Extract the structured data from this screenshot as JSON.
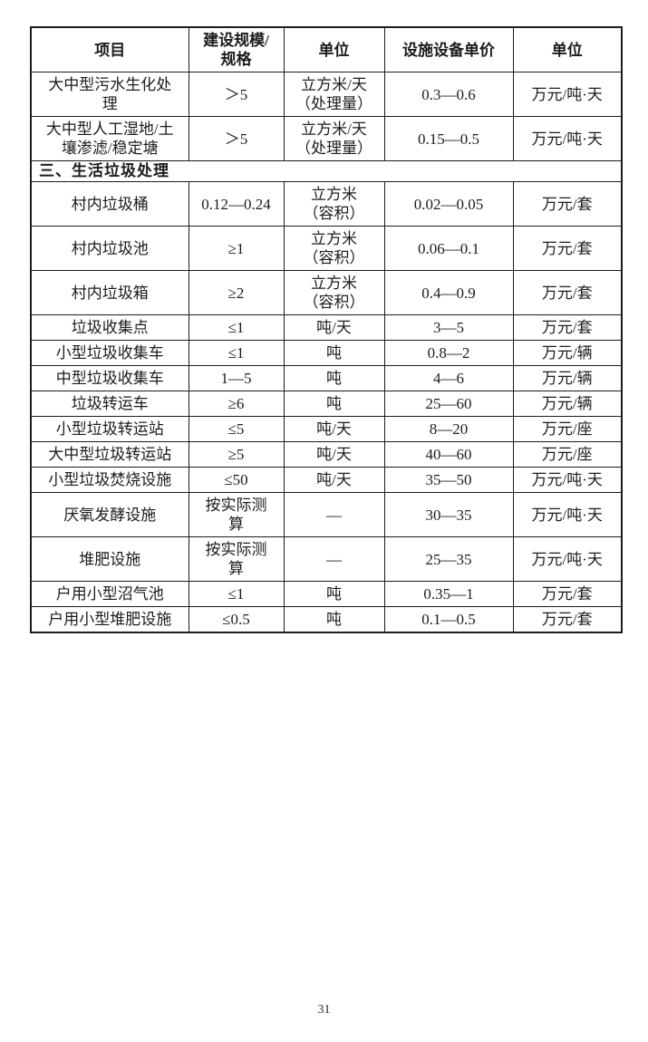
{
  "page": {
    "number": "31"
  },
  "table": {
    "headers": [
      "项目",
      "建设规模/\n规格",
      "单位",
      "设施设备单价",
      "单位"
    ],
    "rows": [
      {
        "type": "data",
        "cells": [
          "大中型污水生化处\n理",
          "＞5",
          "立方米/天\n（处理量）",
          "0.3—0.6",
          "万元/吨·天"
        ]
      },
      {
        "type": "data",
        "cells": [
          "大中型人工湿地/土\n壤渗滤/稳定塘",
          "＞5",
          "立方米/天\n（处理量）",
          "0.15—0.5",
          "万元/吨·天"
        ]
      },
      {
        "type": "section",
        "label": "三、生活垃圾处理"
      },
      {
        "type": "data",
        "cells": [
          "村内垃圾桶",
          "0.12—0.24",
          "立方米\n（容积）",
          "0.02—0.05",
          "万元/套"
        ]
      },
      {
        "type": "data",
        "cells": [
          "村内垃圾池",
          "≥1",
          "立方米\n（容积）",
          "0.06—0.1",
          "万元/套"
        ]
      },
      {
        "type": "data",
        "cells": [
          "村内垃圾箱",
          "≥2",
          "立方米\n（容积）",
          "0.4—0.9",
          "万元/套"
        ]
      },
      {
        "type": "data",
        "cells": [
          "垃圾收集点",
          "≤1",
          "吨/天",
          "3—5",
          "万元/套"
        ]
      },
      {
        "type": "data",
        "cells": [
          "小型垃圾收集车",
          "≤1",
          "吨",
          "0.8—2",
          "万元/辆"
        ]
      },
      {
        "type": "data",
        "cells": [
          "中型垃圾收集车",
          "1—5",
          "吨",
          "4—6",
          "万元/辆"
        ]
      },
      {
        "type": "data",
        "cells": [
          "垃圾转运车",
          "≥6",
          "吨",
          "25—60",
          "万元/辆"
        ]
      },
      {
        "type": "data",
        "cells": [
          "小型垃圾转运站",
          "≤5",
          "吨/天",
          "8—20",
          "万元/座"
        ]
      },
      {
        "type": "data",
        "cells": [
          "大中型垃圾转运站",
          "≥5",
          "吨/天",
          "40—60",
          "万元/座"
        ]
      },
      {
        "type": "data",
        "cells": [
          "小型垃圾焚烧设施",
          "≤50",
          "吨/天",
          "35—50",
          "万元/吨·天"
        ]
      },
      {
        "type": "data",
        "cells": [
          "厌氧发酵设施",
          "按实际测\n算",
          "—",
          "30—35",
          "万元/吨·天"
        ]
      },
      {
        "type": "data",
        "cells": [
          "堆肥设施",
          "按实际测\n算",
          "—",
          "25—35",
          "万元/吨·天"
        ]
      },
      {
        "type": "data",
        "cells": [
          "户用小型沼气池",
          "≤1",
          "吨",
          "0.35—1",
          "万元/套"
        ]
      },
      {
        "type": "data",
        "cells": [
          "户用小型堆肥设施",
          "≤0.5",
          "吨",
          "0.1—0.5",
          "万元/套"
        ]
      }
    ]
  }
}
